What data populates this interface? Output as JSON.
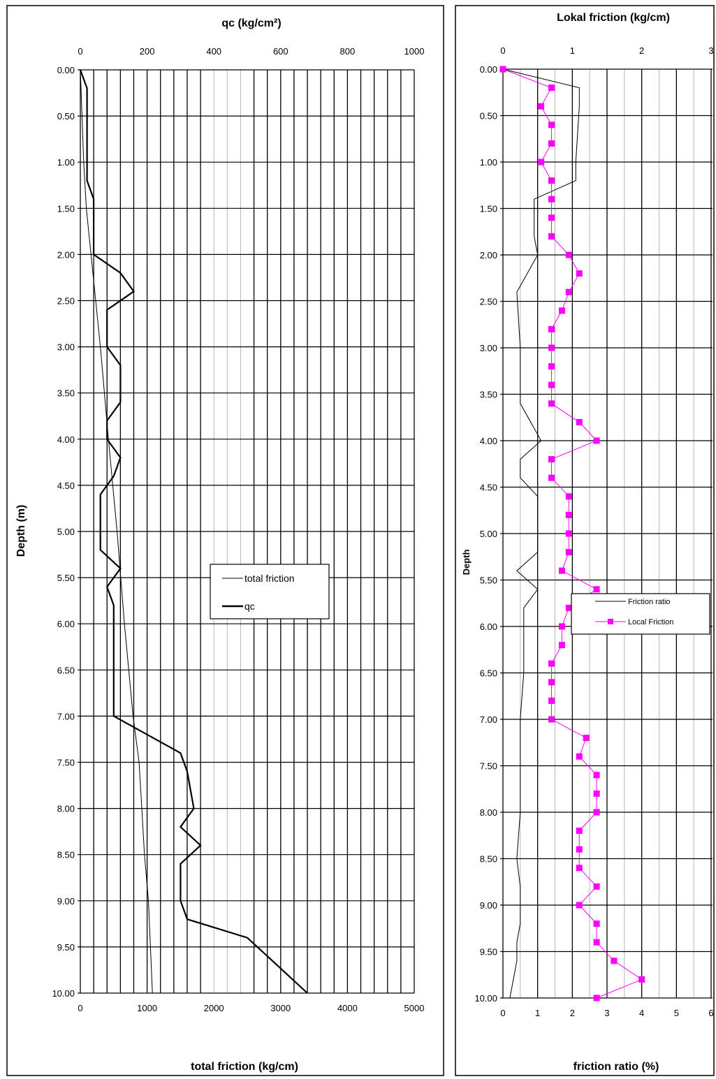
{
  "chart_data": [
    {
      "type": "line",
      "title_top": "qc (kg/cm²)",
      "title_bottom": "total friction (kg/cm)",
      "ylabel": "Depth (m)",
      "y_ticks": [
        "0.00",
        "0.50",
        "1.00",
        "1.50",
        "2.00",
        "2.50",
        "3.00",
        "3.50",
        "4.00",
        "4.50",
        "5.00",
        "5.50",
        "6.00",
        "6.50",
        "7.00",
        "7.50",
        "8.00",
        "8.50",
        "9.00",
        "9.50",
        "10.00"
      ],
      "x_top_ticks": [
        "0",
        "200",
        "400",
        "600",
        "800",
        "1000"
      ],
      "x_bottom_ticks": [
        "0",
        "1000",
        "2000",
        "3000",
        "4000",
        "5000"
      ],
      "ylim": [
        0,
        10
      ],
      "x_top_lim": [
        0,
        1000
      ],
      "x_bottom_lim": [
        0,
        5000
      ],
      "grid": true,
      "legend_position": "center-right",
      "series": [
        {
          "name": "total friction",
          "axis": "bottom",
          "color": "#000000",
          "depth": [
            0,
            0.2,
            1.0,
            1.5,
            2.0,
            3.0,
            4.0,
            5.0,
            6.0,
            7.0,
            7.5,
            8.0,
            8.5,
            9.0,
            9.5,
            10.0
          ],
          "values": [
            0,
            10,
            50,
            90,
            160,
            300,
            420,
            550,
            660,
            790,
            880,
            920,
            960,
            1020,
            1050,
            1080
          ]
        },
        {
          "name": "qc",
          "axis": "top",
          "color": "#000000",
          "depth": [
            0,
            0.2,
            0.4,
            0.6,
            0.8,
            1.0,
            1.2,
            1.4,
            1.6,
            1.8,
            2.0,
            2.2,
            2.4,
            2.6,
            2.8,
            3.0,
            3.2,
            3.4,
            3.6,
            3.8,
            4.0,
            4.2,
            4.4,
            4.6,
            4.8,
            5.0,
            5.2,
            5.4,
            5.6,
            5.8,
            6.0,
            6.2,
            6.4,
            6.6,
            6.8,
            7.0,
            7.2,
            7.4,
            7.6,
            7.8,
            8.0,
            8.2,
            8.4,
            8.6,
            8.8,
            9.0,
            9.2,
            9.4,
            9.6,
            9.8,
            10.0
          ],
          "values": [
            0,
            20,
            20,
            20,
            20,
            20,
            20,
            40,
            40,
            40,
            40,
            120,
            160,
            80,
            80,
            80,
            120,
            120,
            120,
            80,
            80,
            120,
            100,
            60,
            60,
            60,
            60,
            120,
            80,
            100,
            100,
            100,
            100,
            100,
            100,
            100,
            200,
            300,
            320,
            330,
            340,
            300,
            360,
            300,
            300,
            300,
            320,
            500,
            560,
            620,
            680
          ]
        }
      ]
    },
    {
      "type": "line",
      "title_top": "Lokal friction (kg/cm)",
      "title_bottom": "friction ratio (%)",
      "ylabel": "Depth",
      "y_ticks": [
        "0.00",
        "0.50",
        "1.00",
        "1.50",
        "2.00",
        "2.50",
        "3.00",
        "3.50",
        "4.00",
        "4.50",
        "5.00",
        "5.50",
        "6.00",
        "6.50",
        "7.00",
        "7.50",
        "8.00",
        "8.50",
        "9.00",
        "9.50",
        "10.00"
      ],
      "x_top_ticks": [
        "0",
        "1",
        "2",
        "3"
      ],
      "x_bottom_ticks": [
        "0",
        "1",
        "2",
        "3",
        "4",
        "5",
        "6"
      ],
      "ylim": [
        0,
        10
      ],
      "x_top_lim": [
        0,
        3
      ],
      "x_bottom_lim": [
        0,
        6
      ],
      "grid": true,
      "legend_position": "center-right",
      "series": [
        {
          "name": "Friction ratio",
          "axis": "bottom",
          "color": "#000000",
          "depth": [
            0,
            0.2,
            0.4,
            1.0,
            1.2,
            1.4,
            1.6,
            1.8,
            2.0,
            2.4,
            3.0,
            3.5,
            3.6,
            4.0,
            4.2,
            4.4,
            4.6,
            4.8,
            5.0,
            5.2,
            5.4,
            5.6,
            5.8,
            6.0,
            6.5,
            7.0,
            7.2,
            7.4,
            7.6,
            8.0,
            8.5,
            8.8,
            9.0,
            9.2,
            9.4,
            9.6,
            10.0
          ],
          "values": [
            0,
            2.2,
            2.2,
            2.1,
            2.1,
            0.9,
            0.9,
            0.9,
            1.0,
            0.4,
            0.5,
            0.5,
            0.5,
            1.1,
            0.5,
            0.5,
            1.0,
            1.0,
            1.0,
            1.0,
            0.4,
            1.0,
            0.6,
            0.6,
            0.6,
            0.5,
            0.5,
            0.5,
            0.5,
            0.5,
            0.4,
            0.5,
            0.5,
            0.5,
            0.4,
            0.4,
            0.2
          ]
        },
        {
          "name": "Local Friction",
          "axis": "top",
          "color": "#ff00ff",
          "depth": [
            0,
            0.2,
            0.4,
            0.6,
            0.8,
            1.0,
            1.2,
            1.4,
            1.6,
            1.8,
            2.0,
            2.2,
            2.4,
            2.6,
            2.8,
            3.0,
            3.2,
            3.4,
            3.6,
            3.8,
            4.0,
            4.2,
            4.4,
            4.6,
            4.8,
            5.0,
            5.2,
            5.4,
            5.6,
            5.8,
            6.0,
            6.2,
            6.4,
            6.6,
            6.8,
            7.0,
            7.2,
            7.4,
            7.6,
            7.8,
            8.0,
            8.2,
            8.4,
            8.6,
            8.8,
            9.0,
            9.2,
            9.4,
            9.6,
            9.8,
            10.0
          ],
          "values": [
            0,
            0.7,
            0.55,
            0.7,
            0.7,
            0.55,
            0.7,
            0.7,
            0.7,
            0.7,
            0.95,
            1.1,
            0.95,
            0.85,
            0.7,
            0.7,
            0.7,
            0.7,
            0.7,
            1.1,
            1.35,
            0.7,
            0.7,
            0.95,
            0.95,
            0.95,
            0.95,
            0.85,
            1.35,
            0.95,
            0.85,
            0.85,
            0.7,
            0.7,
            0.7,
            0.7,
            1.2,
            1.1,
            1.35,
            1.35,
            1.35,
            1.1,
            1.1,
            1.1,
            1.35,
            1.1,
            1.35,
            1.35,
            1.6,
            2.0,
            1.35
          ]
        }
      ]
    }
  ]
}
